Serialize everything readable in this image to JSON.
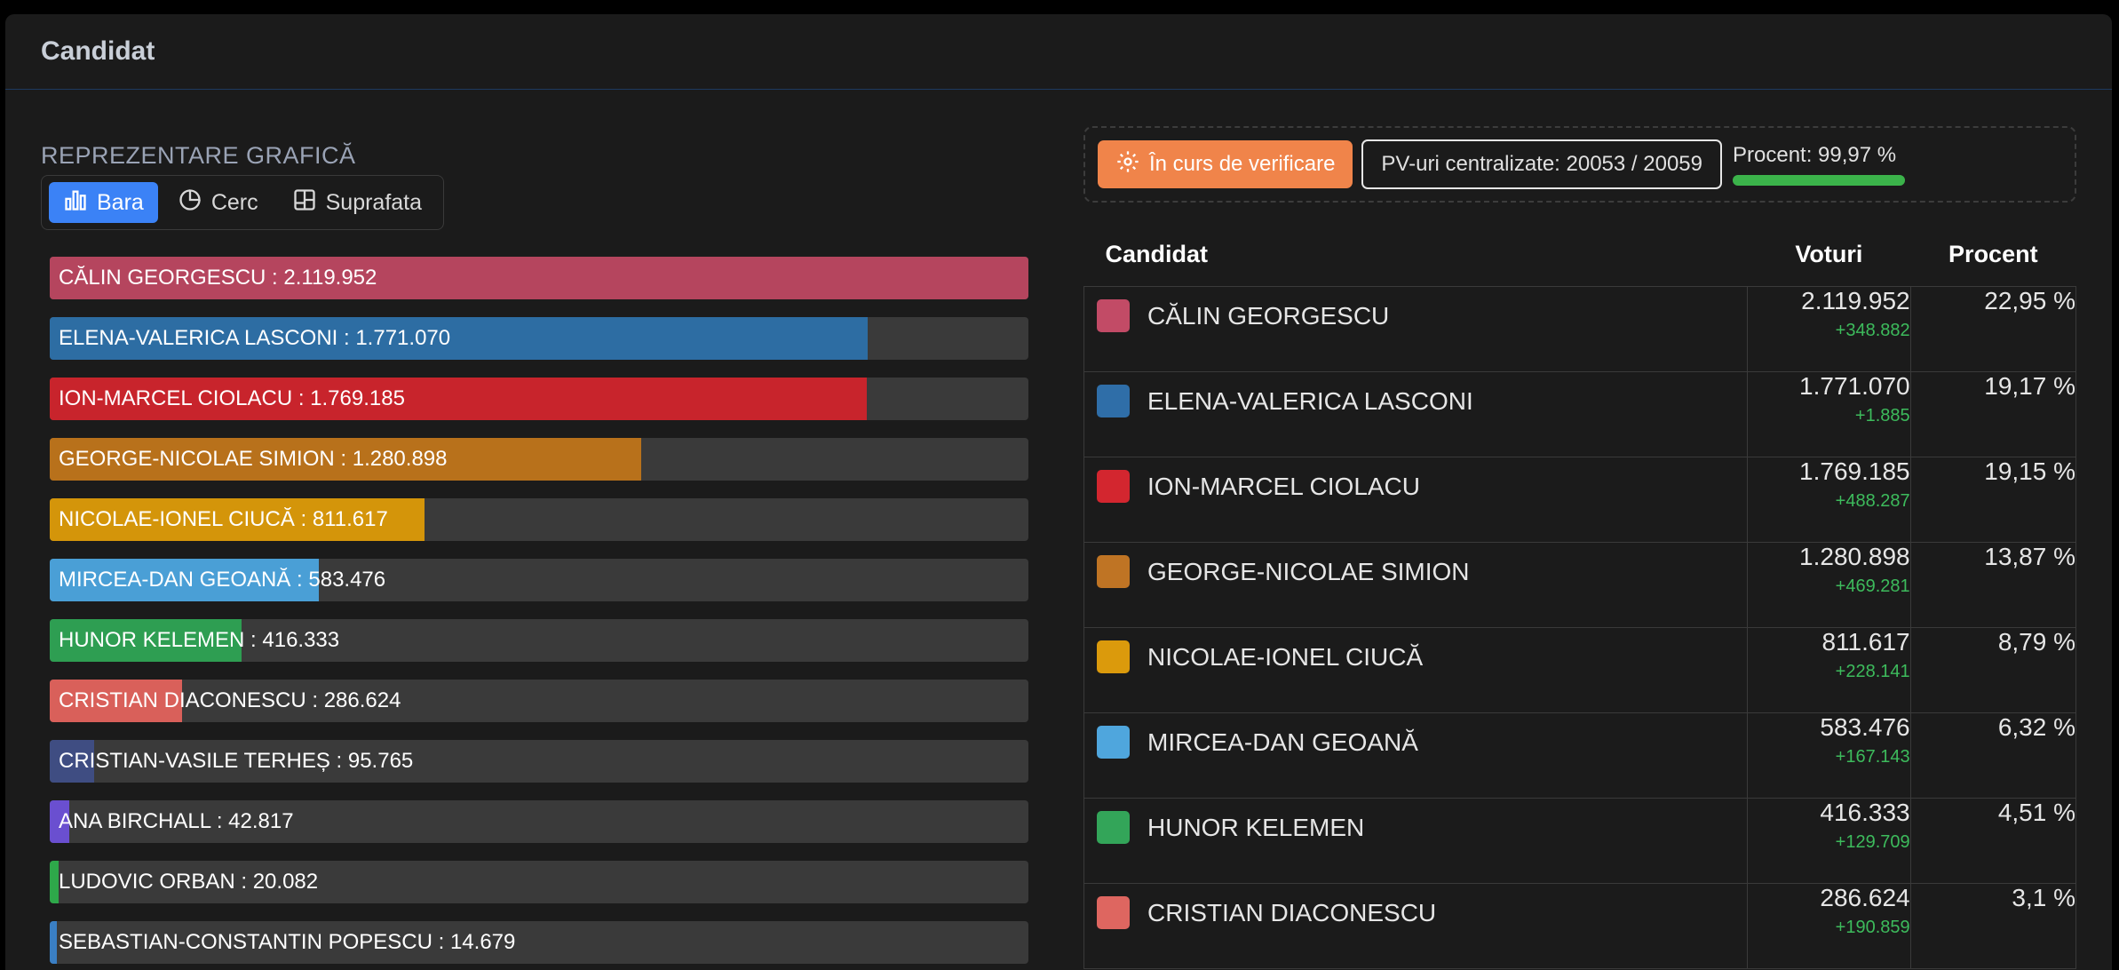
{
  "header": {
    "title": "Candidat"
  },
  "left": {
    "section_title": "REPREZENTARE GRAFICĂ",
    "tabs": [
      {
        "label": "Bara",
        "icon": "bar-chart-icon",
        "active": true
      },
      {
        "label": "Cerc",
        "icon": "pie-chart-icon",
        "active": false
      },
      {
        "label": "Suprafata",
        "icon": "treemap-icon",
        "active": false
      }
    ]
  },
  "chart_data": {
    "type": "bar",
    "orientation": "horizontal",
    "xlim": [
      0,
      2119952
    ],
    "categories": [
      "CĂLIN GEORGESCU",
      "ELENA-VALERICA LASCONI",
      "ION-MARCEL CIOLACU",
      "GEORGE-NICOLAE SIMION",
      "NICOLAE-IONEL CIUCĂ",
      "MIRCEA-DAN GEOANĂ",
      "HUNOR KELEMEN",
      "CRISTIAN DIACONESCU",
      "CRISTIAN-VASILE TERHEȘ",
      "ANA BIRCHALL",
      "LUDOVIC ORBAN",
      "SEBASTIAN-CONSTANTIN POPESCU"
    ],
    "values": [
      2119952,
      1771070,
      1769185,
      1280898,
      811617,
      583476,
      416333,
      286624,
      95765,
      42817,
      20082,
      14679
    ],
    "labels": [
      "CĂLIN GEORGESCU : 2.119.952",
      "ELENA-VALERICA LASCONI : 1.771.070",
      "ION-MARCEL CIOLACU : 1.769.185",
      "GEORGE-NICOLAE SIMION : 1.280.898",
      "NICOLAE-IONEL CIUCĂ : 811.617",
      "MIRCEA-DAN GEOANĂ : 583.476",
      "HUNOR KELEMEN : 416.333",
      "CRISTIAN DIACONESCU : 286.624",
      "CRISTIAN-VASILE TERHEȘ : 95.765",
      "ANA BIRCHALL : 42.817",
      "LUDOVIC ORBAN : 20.082",
      "SEBASTIAN-CONSTANTIN POPESCU : 14.679"
    ],
    "colors": [
      "#b5455e",
      "#2d6da3",
      "#c8242c",
      "#b8711b",
      "#d4950a",
      "#4a9fd6",
      "#2e9e52",
      "#d9605a",
      "#3f4d82",
      "#6a4fd0",
      "#2ea84a",
      "#3a7fc4"
    ]
  },
  "status": {
    "button_label": "În curs de verificare",
    "pv_label": "PV-uri centralizate: 20053 / 20059",
    "percent_label": "Procent: 99,97 %",
    "percent_value": 99.97
  },
  "table": {
    "headers": {
      "candidate": "Candidat",
      "votes": "Voturi",
      "percent": "Procent"
    },
    "rows": [
      {
        "name": "CĂLIN GEORGESCU",
        "votes": "2.119.952",
        "delta": "+348.882",
        "percent": "22,95 %",
        "color": "#c24b66"
      },
      {
        "name": "ELENA-VALERICA LASCONI",
        "votes": "1.771.070",
        "delta": "+1.885",
        "percent": "19,17 %",
        "color": "#2f6ea8"
      },
      {
        "name": "ION-MARCEL CIOLACU",
        "votes": "1.769.185",
        "delta": "+488.287",
        "percent": "19,15 %",
        "color": "#d3262f"
      },
      {
        "name": "GEORGE-NICOLAE SIMION",
        "votes": "1.280.898",
        "delta": "+469.281",
        "percent": "13,87 %",
        "color": "#bf7424"
      },
      {
        "name": "NICOLAE-IONEL CIUCĂ",
        "votes": "811.617",
        "delta": "+228.141",
        "percent": "8,79 %",
        "color": "#db9a0c"
      },
      {
        "name": "MIRCEA-DAN GEOANĂ",
        "votes": "583.476",
        "delta": "+167.143",
        "percent": "6,32 %",
        "color": "#4fa6dd"
      },
      {
        "name": "HUNOR KELEMEN",
        "votes": "416.333",
        "delta": "+129.709",
        "percent": "4,51 %",
        "color": "#33a559"
      },
      {
        "name": "CRISTIAN DIACONESCU",
        "votes": "286.624",
        "delta": "+190.859",
        "percent": "3,1 %",
        "color": "#de6660"
      }
    ]
  }
}
